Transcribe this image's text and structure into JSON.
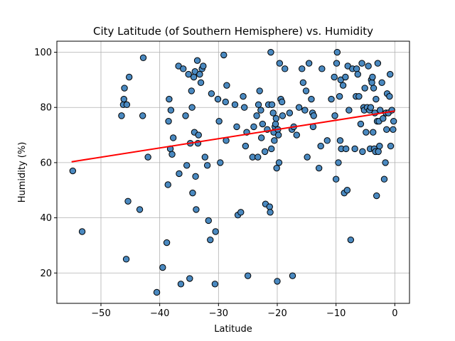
{
  "chart_data": {
    "type": "scatter",
    "title": "City Latitude (of Southern Hemisphere) vs. Humidity",
    "xlabel": "Latitude",
    "ylabel": "Humidity (%)",
    "xlim": [
      -57.5,
      2.5
    ],
    "ylim": [
      9,
      104
    ],
    "xticks": [
      -50,
      -40,
      -30,
      -20,
      -10,
      0
    ],
    "yticks": [
      20,
      40,
      60,
      80,
      100
    ],
    "grid": true,
    "colors": {
      "point_fill": "#4a89c0",
      "point_edge": "#000000",
      "regression_line": "#ff0000"
    },
    "regression": {
      "x": [
        -55,
        0
      ],
      "y": [
        60.3,
        78.7
      ]
    },
    "series": [
      {
        "points": [
          [
            -54.8,
            57
          ],
          [
            -53.2,
            35
          ],
          [
            -46.5,
            77
          ],
          [
            -46.2,
            81
          ],
          [
            -46.1,
            83
          ],
          [
            -46,
            87
          ],
          [
            -45.6,
            81
          ],
          [
            -45.7,
            25
          ],
          [
            -45.4,
            46
          ],
          [
            -45.2,
            91
          ],
          [
            -43.4,
            43
          ],
          [
            -42.8,
            98
          ],
          [
            -42.9,
            77
          ],
          [
            -42,
            62
          ],
          [
            -40.5,
            13
          ],
          [
            -39.5,
            22
          ],
          [
            -38.8,
            31
          ],
          [
            -38.6,
            52
          ],
          [
            -38.5,
            75
          ],
          [
            -38.4,
            83
          ],
          [
            -38.2,
            65
          ],
          [
            -38.1,
            79
          ],
          [
            -37.9,
            63
          ],
          [
            -37.7,
            69
          ],
          [
            -36.8,
            95
          ],
          [
            -36.7,
            56
          ],
          [
            -36.4,
            16
          ],
          [
            -36,
            94
          ],
          [
            -35.6,
            77
          ],
          [
            -35.4,
            59
          ],
          [
            -35.1,
            92
          ],
          [
            -34.9,
            18
          ],
          [
            -34.8,
            67
          ],
          [
            -34.6,
            86
          ],
          [
            -34.5,
            80
          ],
          [
            -34.4,
            49
          ],
          [
            -34.2,
            91
          ],
          [
            -34,
            93
          ],
          [
            -34.1,
            71
          ],
          [
            -33.9,
            55
          ],
          [
            -33.8,
            43
          ],
          [
            -33.6,
            97
          ],
          [
            -33.5,
            67
          ],
          [
            -33.4,
            70
          ],
          [
            -33.2,
            92
          ],
          [
            -33,
            89
          ],
          [
            -32.8,
            94
          ],
          [
            -32.6,
            95
          ],
          [
            -32.3,
            62
          ],
          [
            -31.9,
            59
          ],
          [
            -31.7,
            39
          ],
          [
            -31.4,
            32
          ],
          [
            -31.2,
            85
          ],
          [
            -30.6,
            16
          ],
          [
            -30.5,
            35
          ],
          [
            -30.1,
            83
          ],
          [
            -29.9,
            75
          ],
          [
            -29.7,
            60
          ],
          [
            -29.1,
            99
          ],
          [
            -28.8,
            82
          ],
          [
            -28.7,
            68
          ],
          [
            -28.6,
            88
          ],
          [
            -27.2,
            81
          ],
          [
            -26.9,
            73
          ],
          [
            -26.7,
            41
          ],
          [
            -26.2,
            42
          ],
          [
            -25.8,
            84
          ],
          [
            -25.6,
            80
          ],
          [
            -25.4,
            66
          ],
          [
            -25.2,
            71
          ],
          [
            -25,
            19
          ],
          [
            -24.2,
            62
          ],
          [
            -24,
            73
          ],
          [
            -23.5,
            77
          ],
          [
            -23.3,
            62
          ],
          [
            -23.2,
            81
          ],
          [
            -23,
            86
          ],
          [
            -22.8,
            79
          ],
          [
            -22.7,
            69
          ],
          [
            -22.5,
            74
          ],
          [
            -22.1,
            64
          ],
          [
            -22,
            45
          ],
          [
            -21.7,
            72
          ],
          [
            -21.5,
            81
          ],
          [
            -21.3,
            44
          ],
          [
            -21.2,
            42
          ],
          [
            -21.1,
            100
          ],
          [
            -21,
            65
          ],
          [
            -20.9,
            81
          ],
          [
            -20.7,
            78
          ],
          [
            -20.6,
            71
          ],
          [
            -20.5,
            68
          ],
          [
            -20.4,
            73
          ],
          [
            -20.3,
            74
          ],
          [
            -20.2,
            76
          ],
          [
            -20.1,
            58
          ],
          [
            -20,
            17
          ],
          [
            -19.9,
            72
          ],
          [
            -19.8,
            70
          ],
          [
            -19.7,
            60
          ],
          [
            -19.6,
            96
          ],
          [
            -19.4,
            83
          ],
          [
            -19.2,
            82
          ],
          [
            -19.1,
            77
          ],
          [
            -18.7,
            94
          ],
          [
            -17.9,
            78
          ],
          [
            -17.5,
            72
          ],
          [
            -17.4,
            19
          ],
          [
            -17.2,
            73
          ],
          [
            -16.7,
            70
          ],
          [
            -16.3,
            80
          ],
          [
            -15.8,
            94
          ],
          [
            -15.6,
            89
          ],
          [
            -15.3,
            79
          ],
          [
            -15.1,
            86
          ],
          [
            -14.9,
            62
          ],
          [
            -14.6,
            96
          ],
          [
            -14.2,
            83
          ],
          [
            -14,
            78
          ],
          [
            -13.9,
            73
          ],
          [
            -13.8,
            77
          ],
          [
            -12.9,
            58
          ],
          [
            -12.6,
            66
          ],
          [
            -12.4,
            94
          ],
          [
            -11.5,
            68
          ],
          [
            -10.8,
            83
          ],
          [
            -10.3,
            91
          ],
          [
            -10.2,
            77
          ],
          [
            -10,
            54
          ],
          [
            -9.9,
            96
          ],
          [
            -9.8,
            100
          ],
          [
            -9.6,
            60
          ],
          [
            -9.4,
            84
          ],
          [
            -9.3,
            68
          ],
          [
            -9.2,
            90
          ],
          [
            -9.1,
            65
          ],
          [
            -8.8,
            88
          ],
          [
            -8.6,
            49
          ],
          [
            -8.4,
            91
          ],
          [
            -8.3,
            65
          ],
          [
            -8.1,
            50
          ],
          [
            -8,
            95
          ],
          [
            -7.8,
            79
          ],
          [
            -7.5,
            32
          ],
          [
            -7.2,
            94
          ],
          [
            -6.8,
            65
          ],
          [
            -6.6,
            84
          ],
          [
            -6.5,
            94
          ],
          [
            -6.3,
            92
          ],
          [
            -6.1,
            84
          ],
          [
            -5.8,
            74
          ],
          [
            -5.6,
            96
          ],
          [
            -5.5,
            64
          ],
          [
            -5.3,
            80
          ],
          [
            -5.2,
            79
          ],
          [
            -5.1,
            87
          ],
          [
            -4.9,
            71
          ],
          [
            -4.7,
            80
          ],
          [
            -4.5,
            95
          ],
          [
            -4.3,
            79
          ],
          [
            -4.2,
            65
          ],
          [
            -4.1,
            80
          ],
          [
            -4,
            90
          ],
          [
            -3.9,
            89
          ],
          [
            -3.8,
            91
          ],
          [
            -3.7,
            71
          ],
          [
            -3.6,
            87
          ],
          [
            -3.5,
            65
          ],
          [
            -3.4,
            78
          ],
          [
            -3.3,
            64
          ],
          [
            -3.2,
            83
          ],
          [
            -3.1,
            48
          ],
          [
            -3,
            75
          ],
          [
            -2.9,
            96
          ],
          [
            -2.8,
            64
          ],
          [
            -2.7,
            75
          ],
          [
            -2.6,
            66
          ],
          [
            -2.5,
            79
          ],
          [
            -2.2,
            89
          ],
          [
            -2,
            76
          ],
          [
            -1.8,
            54
          ],
          [
            -1.6,
            60
          ],
          [
            -1.5,
            78
          ],
          [
            -1.4,
            72
          ],
          [
            -1.3,
            85
          ],
          [
            -1.1,
            78
          ],
          [
            -0.9,
            84
          ],
          [
            -0.8,
            92
          ],
          [
            -0.7,
            66
          ],
          [
            -0.5,
            79
          ],
          [
            -0.3,
            72
          ],
          [
            -0.2,
            75
          ]
        ]
      }
    ]
  }
}
